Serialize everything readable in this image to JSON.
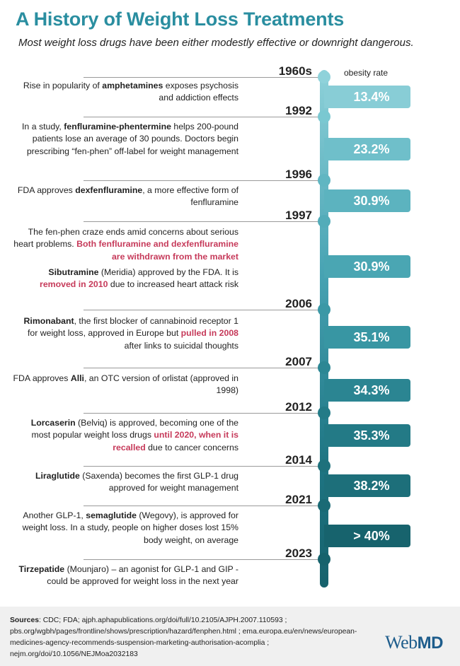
{
  "title": "A History of Weight Loss Treatments",
  "subtitle": "Most weight loss drugs have been either modestly effective or downright dangerous.",
  "obesity_label": "obesity rate",
  "years": [
    "1960s",
    "1992",
    "1996",
    "1997",
    "2006",
    "2007",
    "2012",
    "2014",
    "2021",
    "2023"
  ],
  "rates": [
    "13.4%",
    "23.2%",
    "30.9%",
    "30.9%",
    "35.1%",
    "34.3%",
    "35.3%",
    "38.2%",
    "> 40%"
  ],
  "events": [
    [
      {
        "t": "Rise in popularity of "
      },
      {
        "t": "amphetamines",
        "s": "b"
      },
      {
        "t": " exposes psychosis and addiction effects"
      }
    ],
    [
      {
        "t": "In a study, "
      },
      {
        "t": "fenfluramine-phentermine",
        "s": "b"
      },
      {
        "t": " helps 200-pound patients lose an average of 30 pounds. Doctors begin prescribing “fen-phen” off-label for weight management"
      }
    ],
    [
      {
        "t": "FDA approves "
      },
      {
        "t": "dexfenfluramine",
        "s": "b"
      },
      {
        "t": ", a more effective form of fenfluramine"
      }
    ],
    [
      {
        "t": "The fen-phen craze ends amid concerns about serious heart problems. "
      },
      {
        "t": "Both fenfluramine and dexfenfluramine are withdrawn from the market",
        "s": "hl"
      }
    ],
    [
      {
        "t": "Sibutramine",
        "s": "b"
      },
      {
        "t": " (Meridia) approved by the FDA. It is "
      },
      {
        "t": "removed in 2010",
        "s": "hl"
      },
      {
        "t": " due to increased heart attack risk"
      }
    ],
    [
      {
        "t": "Rimonabant",
        "s": "b"
      },
      {
        "t": ", the first blocker of cannabinoid receptor 1 for weight loss, approved in Europe but "
      },
      {
        "t": "pulled in 2008",
        "s": "hl"
      },
      {
        "t": " after links to suicidal thoughts"
      }
    ],
    [
      {
        "t": "FDA approves "
      },
      {
        "t": "Alli",
        "s": "b"
      },
      {
        "t": ", an OTC version of orlistat (approved in 1998)"
      }
    ],
    [
      {
        "t": "Lorcaserin",
        "s": "b"
      },
      {
        "t": " (Belviq) is approved, becoming one of the most popular weight loss drugs "
      },
      {
        "t": "until 2020, when it is recalled",
        "s": "hl"
      },
      {
        "t": " due to cancer concerns"
      }
    ],
    [
      {
        "t": "Liraglutide",
        "s": "b"
      },
      {
        "t": " (Saxenda) becomes the first GLP-1 drug approved for weight management"
      }
    ],
    [
      {
        "t": "Another GLP-1, "
      },
      {
        "t": "semaglutide",
        "s": "b"
      },
      {
        "t": " (Wegovy), is approved for weight loss. In a study, people on higher doses lost 15% body weight, on average"
      }
    ],
    [
      {
        "t": "Tirzepatide",
        "s": "b"
      },
      {
        "t": " (Mounjaro) – an agonist for GLP-1 and GIP - could be approved for weight loss in the next year"
      }
    ]
  ],
  "sources_label": "Sources",
  "sources_text": ": CDC; FDA; ajph.aphapublications.org/doi/full/10.2105/AJPH.2007.110593 ; pbs.org/wgbh/pages/frontline/shows/prescription/hazard/fenphen.html ; ema.europa.eu/en/news/european-medicines-agency-recommends-suspension-marketing-authorisation-acomplia ; nejm.org/doi/10.1056/NEJMoa2032183",
  "logo_web": "Web",
  "logo_md": "MD",
  "colors": {
    "title": "#2a8ea0",
    "highlight": "#c63a5a",
    "rate_boxes": [
      "#88cdd6",
      "#6fbfca",
      "#5cb3bf",
      "#4aa6b3",
      "#3896a3",
      "#2b8592",
      "#237a86",
      "#1d6f7a",
      "#17636d"
    ]
  }
}
